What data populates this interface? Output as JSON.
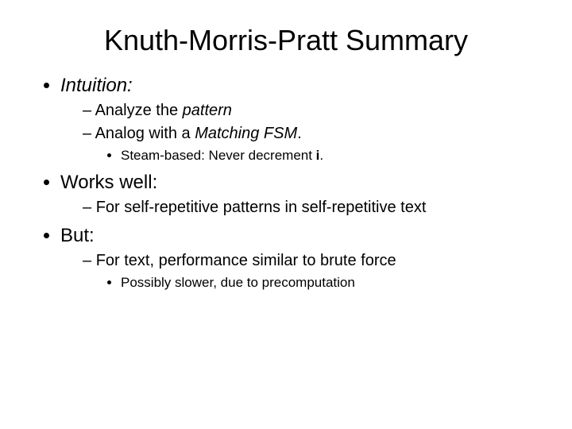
{
  "title": "Knuth-Morris-Pratt Summary",
  "b1": {
    "label": "Intuition:"
  },
  "b1s1": {
    "prefix": "Analyze the ",
    "em": "pattern"
  },
  "b1s2": {
    "prefix": "Analog with a ",
    "em": "Matching FSM",
    "suffix": "."
  },
  "b1s2s1": {
    "prefix": "Steam-based: Never decrement ",
    "bold": "i",
    "suffix": "."
  },
  "b2": {
    "label": "Works well:"
  },
  "b2s1": {
    "text": "For self-repetitive patterns in self-repetitive text"
  },
  "b3": {
    "label": "But:"
  },
  "b3s1": {
    "text": "For text, performance similar to brute force"
  },
  "b3s1s1": {
    "text": "Possibly slower, due to precomputation"
  }
}
